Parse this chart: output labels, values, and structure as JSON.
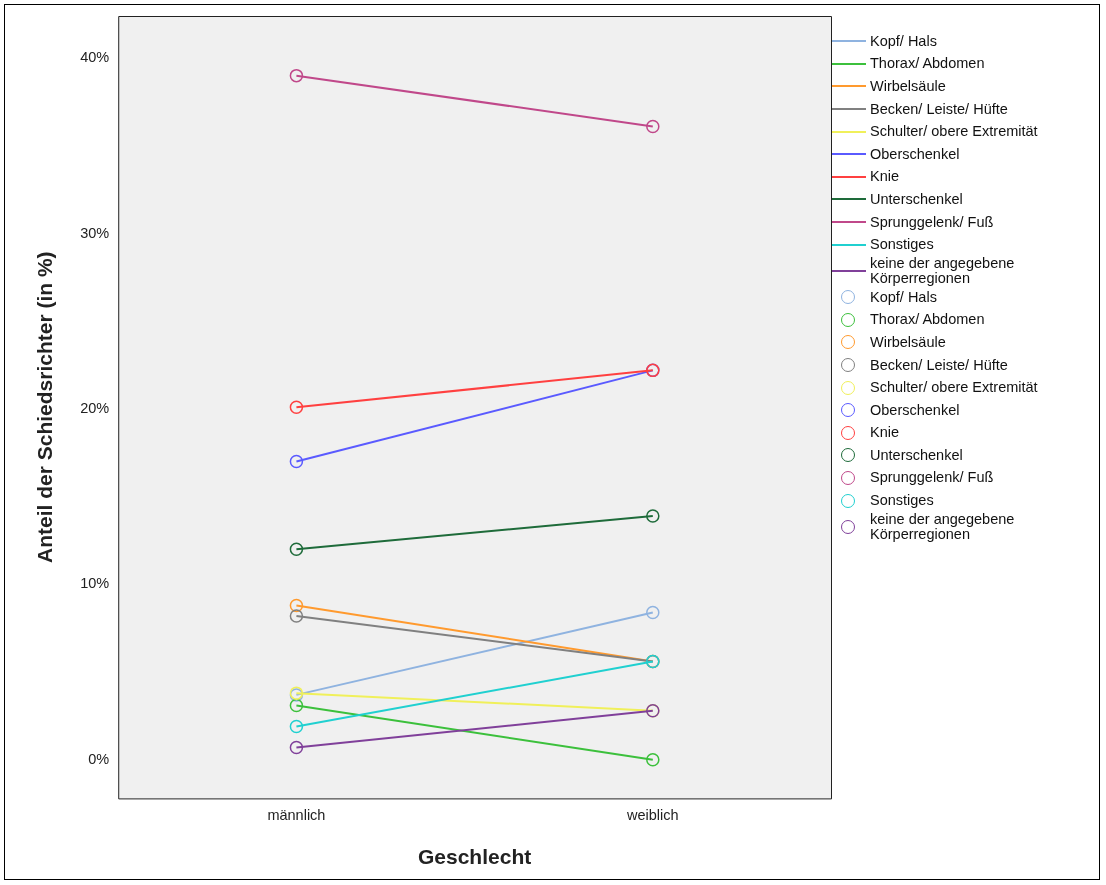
{
  "chart_data": {
    "type": "line",
    "xlabel": "Geschlecht",
    "ylabel": "Anteil der Schiedsrichter (in %)",
    "categories": [
      "männlich",
      "weiblich"
    ],
    "ylim": [
      -2.2,
      42.4
    ],
    "yticks": [
      {
        "value": 0,
        "label": "0%"
      },
      {
        "value": 10,
        "label": "10%"
      },
      {
        "value": 20,
        "label": "20%"
      },
      {
        "value": 30,
        "label": "30%"
      },
      {
        "value": 40,
        "label": "40%"
      }
    ],
    "grid": false,
    "legend": "right",
    "marker": "circle",
    "line_style": "solid",
    "series": [
      {
        "name": "Kopf/ Hals",
        "color": "#8fb3e0",
        "values": [
          3.7,
          8.4
        ]
      },
      {
        "name": "Thorax/ Abdomen",
        "color": "#3cc03c",
        "values": [
          3.1,
          0.0
        ]
      },
      {
        "name": "Wirbelsäule",
        "color": "#ff9a2e",
        "values": [
          8.8,
          5.6
        ]
      },
      {
        "name": "Becken/ Leiste/ Hüfte",
        "color": "#808080",
        "values": [
          8.2,
          5.6
        ]
      },
      {
        "name": "Schulter/ obere Extremität",
        "color": "#f0f05a",
        "values": [
          3.8,
          2.8
        ]
      },
      {
        "name": "Oberschenkel",
        "color": "#5a5aff",
        "values": [
          17.0,
          22.2
        ]
      },
      {
        "name": "Knie",
        "color": "#ff4040",
        "values": [
          20.1,
          22.2
        ]
      },
      {
        "name": "Unterschenkel",
        "color": "#1e6b3a",
        "values": [
          12.0,
          13.9
        ]
      },
      {
        "name": "Sprunggelenk/ Fuß",
        "color": "#c0488a",
        "values": [
          39.0,
          36.1
        ]
      },
      {
        "name": "Sonstiges",
        "color": "#20d0d0",
        "values": [
          1.9,
          5.6
        ]
      },
      {
        "name": "keine der angegebene Körperregionen",
        "color": "#80409a",
        "values": [
          0.7,
          2.8
        ]
      }
    ]
  }
}
